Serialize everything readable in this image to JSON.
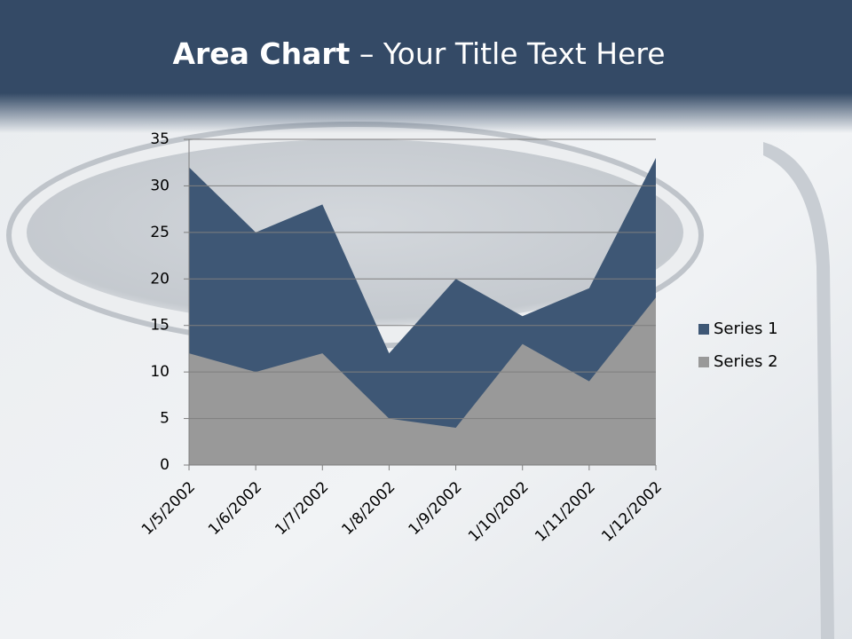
{
  "slide": {
    "title_bold": "Area Chart",
    "title_rest": "– Your Title Text Here"
  },
  "chart_data": {
    "type": "area",
    "categories": [
      "1/5/2002",
      "1/6/2002",
      "1/7/2002",
      "1/8/2002",
      "1/9/2002",
      "1/10/2002",
      "1/11/2002",
      "1/12/2002"
    ],
    "series": [
      {
        "name": "Series 1",
        "color": "#3e5775",
        "values": [
          32,
          25,
          28,
          12,
          20,
          16,
          19,
          33
        ]
      },
      {
        "name": "Series 2",
        "color": "#999999",
        "values": [
          12,
          10,
          12,
          5,
          4,
          13,
          9,
          18
        ]
      }
    ],
    "ylim": [
      0,
      35
    ],
    "yticks": [
      0,
      5,
      10,
      15,
      20,
      25,
      30,
      35
    ],
    "grid": true,
    "legend": "right"
  }
}
